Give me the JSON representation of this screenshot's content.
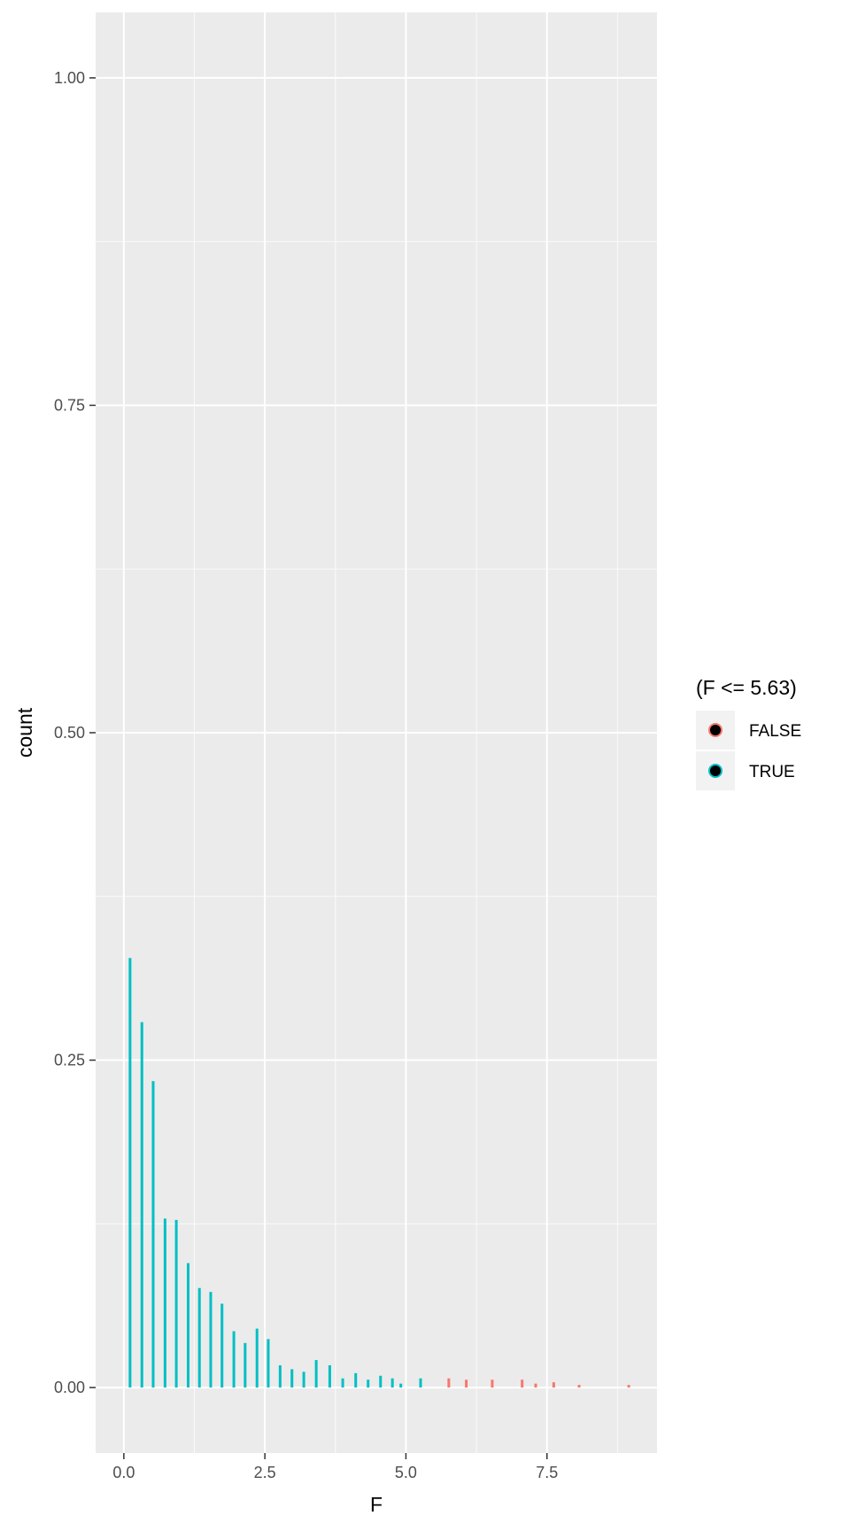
{
  "chart_data": {
    "type": "bar",
    "title": "",
    "xlabel": "F",
    "ylabel": "count",
    "xlim": [
      -0.5,
      9.45
    ],
    "ylim": [
      -0.05,
      1.05
    ],
    "x_ticks": [
      0.0,
      2.5,
      5.0,
      7.5
    ],
    "x_tick_labels": [
      "0.0",
      "2.5",
      "5.0",
      "7.5"
    ],
    "y_ticks": [
      0.0,
      0.25,
      0.5,
      0.75,
      1.0
    ],
    "y_tick_labels": [
      "0.00",
      "0.25",
      "0.50",
      "0.75",
      "1.00"
    ],
    "grid": true,
    "legend": {
      "title": "(F <= 5.63)",
      "placement": "right",
      "entries": [
        {
          "label": "FALSE",
          "color": "#F8766D"
        },
        {
          "label": "TRUE",
          "color": "#00BFC4"
        }
      ]
    },
    "series": [
      {
        "name": "TRUE",
        "color": "#00BFC4",
        "points": [
          {
            "x": 0.11,
            "y": 0.328
          },
          {
            "x": 0.32,
            "y": 0.279
          },
          {
            "x": 0.52,
            "y": 0.234
          },
          {
            "x": 0.73,
            "y": 0.129
          },
          {
            "x": 0.93,
            "y": 0.128
          },
          {
            "x": 1.14,
            "y": 0.095
          },
          {
            "x": 1.34,
            "y": 0.076
          },
          {
            "x": 1.54,
            "y": 0.073
          },
          {
            "x": 1.74,
            "y": 0.064
          },
          {
            "x": 1.95,
            "y": 0.043
          },
          {
            "x": 2.15,
            "y": 0.034
          },
          {
            "x": 2.36,
            "y": 0.045
          },
          {
            "x": 2.56,
            "y": 0.037
          },
          {
            "x": 2.77,
            "y": 0.017
          },
          {
            "x": 2.98,
            "y": 0.014
          },
          {
            "x": 3.19,
            "y": 0.012
          },
          {
            "x": 3.41,
            "y": 0.021
          },
          {
            "x": 3.65,
            "y": 0.017
          },
          {
            "x": 3.88,
            "y": 0.007
          },
          {
            "x": 4.11,
            "y": 0.011
          },
          {
            "x": 4.33,
            "y": 0.006
          },
          {
            "x": 4.55,
            "y": 0.009
          },
          {
            "x": 4.76,
            "y": 0.007
          },
          {
            "x": 4.91,
            "y": 0.003
          },
          {
            "x": 5.26,
            "y": 0.007
          }
        ]
      },
      {
        "name": "FALSE",
        "color": "#F8766D",
        "points": [
          {
            "x": 5.76,
            "y": 0.007
          },
          {
            "x": 6.07,
            "y": 0.006
          },
          {
            "x": 6.53,
            "y": 0.006
          },
          {
            "x": 7.06,
            "y": 0.006
          },
          {
            "x": 7.3,
            "y": 0.003
          },
          {
            "x": 7.62,
            "y": 0.004
          },
          {
            "x": 8.07,
            "y": 0.002
          },
          {
            "x": 8.95,
            "y": 0.002
          }
        ]
      }
    ]
  }
}
